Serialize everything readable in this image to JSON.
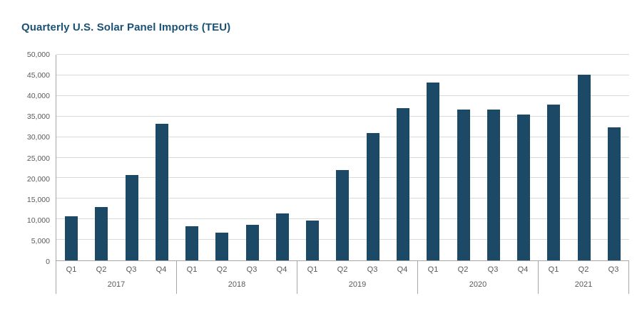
{
  "page": {
    "title": "Quarterly U.S. Solar Panel Imports (TEU)",
    "title_color": "#1a5276"
  },
  "chart_data": {
    "type": "bar",
    "title": "Quarterly U.S. Solar Panel Imports (TEU)",
    "xlabel": "",
    "ylabel": "",
    "ylim": [
      0,
      50000
    ],
    "ytick_step": 5000,
    "ytick_labels": [
      "0",
      "5,000",
      "10,000",
      "15,000",
      "20,000",
      "25,000",
      "30,000",
      "35,000",
      "40,000",
      "45,000",
      "50,000"
    ],
    "grid": "horizontal",
    "legend": "none",
    "bar_color": "#1c4966",
    "groups": [
      {
        "year": "2017",
        "quarters": [
          "Q1",
          "Q2",
          "Q3",
          "Q4"
        ],
        "values": [
          10800,
          12900,
          20800,
          33300
        ]
      },
      {
        "year": "2018",
        "quarters": [
          "Q1",
          "Q2",
          "Q3",
          "Q4"
        ],
        "values": [
          8300,
          6800,
          8700,
          11500
        ]
      },
      {
        "year": "2019",
        "quarters": [
          "Q1",
          "Q2",
          "Q3",
          "Q4"
        ],
        "values": [
          9700,
          21900,
          31000,
          37100
        ]
      },
      {
        "year": "2020",
        "quarters": [
          "Q1",
          "Q2",
          "Q3",
          "Q4"
        ],
        "values": [
          43300,
          36700,
          36700,
          35400
        ]
      },
      {
        "year": "2021",
        "quarters": [
          "Q1",
          "Q2",
          "Q3"
        ],
        "values": [
          37900,
          45100,
          32300
        ]
      }
    ]
  }
}
